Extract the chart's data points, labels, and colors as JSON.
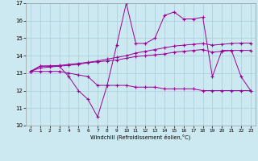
{
  "xlabel": "Windchill (Refroidissement éolien,°C)",
  "background_color": "#cce8f0",
  "grid_color": "#aaccdd",
  "line_color": "#990099",
  "xlim": [
    -0.5,
    23.5
  ],
  "ylim": [
    10,
    17
  ],
  "xticks": [
    0,
    1,
    2,
    3,
    4,
    5,
    6,
    7,
    8,
    9,
    10,
    11,
    12,
    13,
    14,
    15,
    16,
    17,
    18,
    19,
    20,
    21,
    22,
    23
  ],
  "yticks": [
    10,
    11,
    12,
    13,
    14,
    15,
    16,
    17
  ],
  "x": [
    0,
    1,
    2,
    3,
    4,
    5,
    6,
    7,
    8,
    9,
    10,
    11,
    12,
    13,
    14,
    15,
    16,
    17,
    18,
    19,
    20,
    21,
    22,
    23
  ],
  "line_volatile": [
    13.1,
    13.4,
    13.4,
    13.4,
    12.8,
    12.0,
    11.5,
    10.5,
    12.3,
    14.6,
    17.0,
    14.7,
    14.7,
    15.0,
    16.3,
    16.5,
    16.1,
    16.1,
    16.2,
    12.8,
    14.3,
    14.3,
    12.8,
    12.0
  ],
  "line_min": [
    13.1,
    13.1,
    13.1,
    13.1,
    13.0,
    12.9,
    12.8,
    12.3,
    12.3,
    12.3,
    12.3,
    12.2,
    12.2,
    12.2,
    12.1,
    12.1,
    12.1,
    12.1,
    12.0,
    12.0,
    12.0,
    12.0,
    12.0,
    12.0
  ],
  "line_avg": [
    13.1,
    13.3,
    13.35,
    13.4,
    13.45,
    13.5,
    13.6,
    13.65,
    13.7,
    13.75,
    13.85,
    13.95,
    14.0,
    14.05,
    14.1,
    14.2,
    14.25,
    14.3,
    14.35,
    14.2,
    14.25,
    14.3,
    14.3,
    14.3
  ],
  "line_max": [
    13.1,
    13.4,
    13.42,
    13.44,
    13.5,
    13.56,
    13.62,
    13.7,
    13.8,
    13.9,
    14.0,
    14.15,
    14.25,
    14.35,
    14.45,
    14.55,
    14.6,
    14.65,
    14.7,
    14.6,
    14.65,
    14.7,
    14.72,
    14.72
  ]
}
